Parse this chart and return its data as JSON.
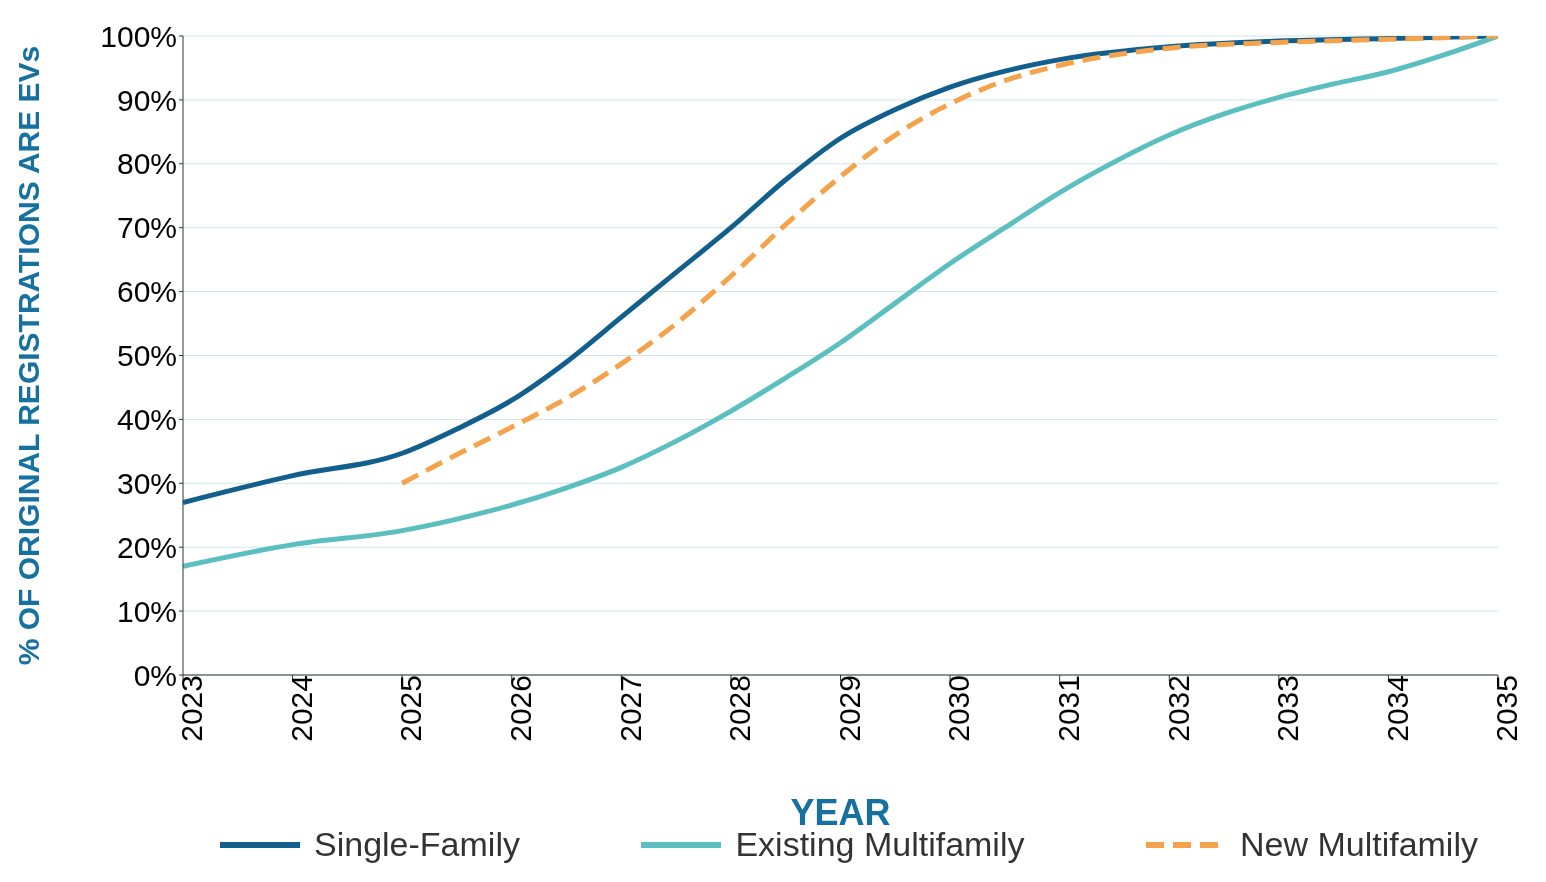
{
  "chart_data": {
    "type": "line",
    "xlabel": "YEAR",
    "ylabel": "% OF ORIGINAL REGISTRATIONS ARE EVs",
    "xlim": [
      2023,
      2035
    ],
    "xticks": [
      2023,
      2024,
      2025,
      2026,
      2027,
      2028,
      2029,
      2030,
      2031,
      2032,
      2033,
      2034,
      2035
    ],
    "ylim": [
      0,
      100
    ],
    "yticks": [
      {
        "value": 0,
        "label": "0%"
      },
      {
        "value": 10,
        "label": "10%"
      },
      {
        "value": 20,
        "label": "20%"
      },
      {
        "value": 30,
        "label": "30%"
      },
      {
        "value": 40,
        "label": "40%"
      },
      {
        "value": 50,
        "label": "50%"
      },
      {
        "value": 60,
        "label": "60%"
      },
      {
        "value": 70,
        "label": "70%"
      },
      {
        "value": 80,
        "label": "80%"
      },
      {
        "value": 90,
        "label": "90%"
      },
      {
        "value": 100,
        "label": "100%"
      }
    ],
    "grid": "y",
    "legend": "bottom",
    "marker": "none",
    "series": [
      {
        "name": "Single-Family",
        "color": "#125f8d",
        "line_style": "solid",
        "x": [
          2023,
          2024,
          2025,
          2025.5,
          2026,
          2026.5,
          2027,
          2027.5,
          2028,
          2028.5,
          2029,
          2029.5,
          2030,
          2030.5,
          2031,
          2032,
          2033,
          2034,
          2035
        ],
        "values": [
          27,
          31.2,
          34.7,
          38.5,
          43,
          49,
          56,
          63,
          70,
          77.5,
          84,
          88.5,
          92,
          94.5,
          96.3,
          98.3,
          99.2,
          99.6,
          100
        ]
      },
      {
        "name": "Existing Multifamily",
        "color": "#5bbfc0",
        "line_style": "solid",
        "x": [
          2023,
          2024,
          2025,
          2025.5,
          2026,
          2026.5,
          2027,
          2027.5,
          2028,
          2028.5,
          2029,
          2029.5,
          2030,
          2030.5,
          2031,
          2031.5,
          2032,
          2032.5,
          2033,
          2033.5,
          2034,
          2034.5,
          2035
        ],
        "values": [
          17,
          20.4,
          22.6,
          24.4,
          26.6,
          29.3,
          32.5,
          36.6,
          41.3,
          46.5,
          52,
          58.2,
          64.4,
          70,
          75.5,
          80.3,
          84.5,
          87.8,
          90.4,
          92.5,
          94.4,
          97,
          100
        ]
      },
      {
        "name": "New Multifamily",
        "color": "#f4a24c",
        "line_style": "dashed",
        "x": [
          2025,
          2025.5,
          2026,
          2026.5,
          2027,
          2027.5,
          2028,
          2028.5,
          2029,
          2029.5,
          2030,
          2030.5,
          2031,
          2032,
          2033,
          2034,
          2035
        ],
        "values": [
          30,
          34.5,
          38.8,
          43.3,
          48.7,
          55,
          62.4,
          70.5,
          78,
          84.5,
          89.4,
          93,
          95.4,
          98.1,
          99,
          99.5,
          100
        ]
      }
    ]
  }
}
